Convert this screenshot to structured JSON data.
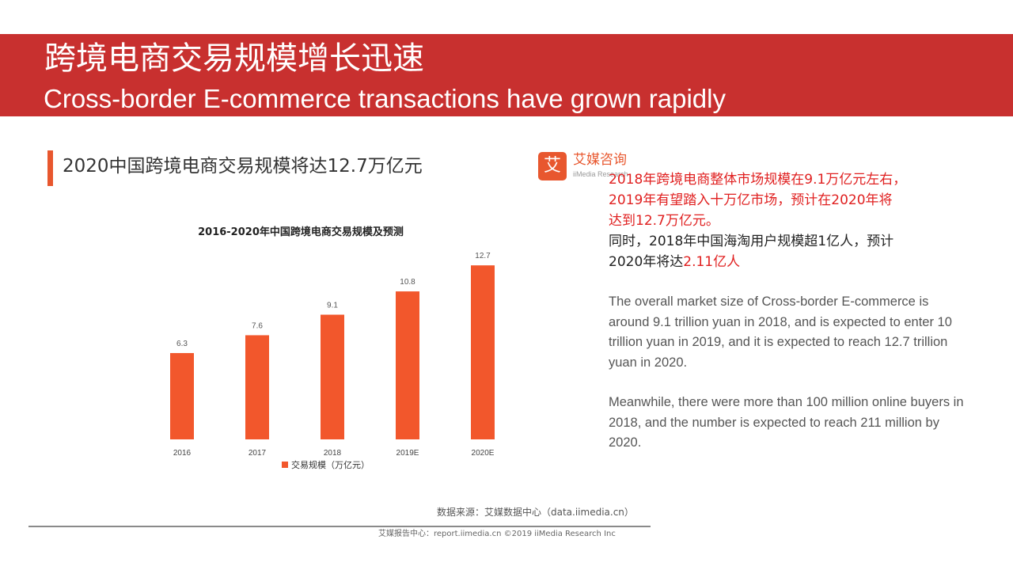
{
  "slide": {
    "title_cn": "跨境电商交易规模增长迅速",
    "title_en": "Cross-border E-commerce transactions have grown rapidly"
  },
  "panel": {
    "heading": "2020中国跨境电商交易规模将达12.7万亿元",
    "logo_mark": "艾",
    "logo_name": "艾媒咨询",
    "logo_sub": "iiMedia Research",
    "source": "数据来源：艾媒数据中心（data.iimedia.cn）",
    "footer": "艾媒报告中心：report.iimedia.cn ©2019 iiMedia Research Inc"
  },
  "chart_data": {
    "type": "bar",
    "title": "2016-2020年中国跨境电商交易规模及预测",
    "categories": [
      "2016",
      "2017",
      "2018",
      "2019E",
      "2020E"
    ],
    "series": [
      {
        "name": "交易规模（万亿元）",
        "values": [
          6.3,
          7.6,
          9.1,
          10.8,
          12.7
        ]
      }
    ],
    "value_labels": [
      "6.3",
      "7.6",
      "9.1",
      "10.8",
      "12.7"
    ],
    "ylim": [
      0,
      13
    ],
    "grid": false,
    "legend_position": "bottom",
    "colors": {
      "bar": "#f2572c"
    }
  },
  "notes_cn": {
    "line1": "2018年跨境电商整体市场规模在9.1万亿元左右，",
    "line2": "2019年有望踏入十万亿市场，预计在2020年将",
    "line3": "达到12.7万亿元。",
    "line4": "同时，2018年中国海淘用户规模超1亿人，预计",
    "line5_prefix": "2020年将达",
    "line5_red": "2.11亿人"
  },
  "notes_en": {
    "para1": "The overall market size of Cross-border E-commerce is around 9.1 trillion yuan in 2018, and is expected to enter 10 trillion yuan in 2019, and it is expected to reach 12.7 trillion yuan in 2020.",
    "para2": "Meanwhile, there were more than 100 million online buyers in 2018, and the number is expected to reach 211 million by 2020."
  },
  "colors": {
    "banner": "#c8302f",
    "accent": "#e8572e",
    "highlight_text": "#e02020"
  }
}
